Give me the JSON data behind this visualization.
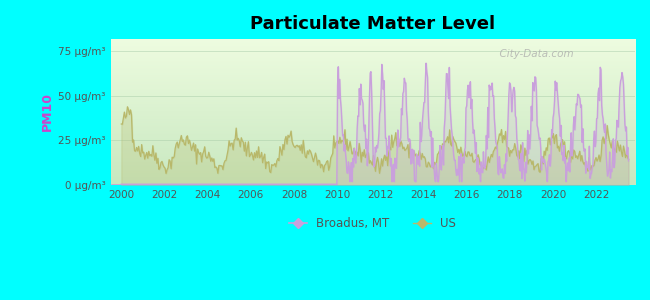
{
  "title": "Particulate Matter Level",
  "ylabel": "PM10",
  "background_color": "#00FFFF",
  "broadus_color": "#c9a0dc",
  "us_color": "#b8b86a",
  "watermark": "  City-Data.com",
  "yticks": [
    0,
    25,
    50,
    75
  ],
  "ytick_labels": [
    "0 μg/m³",
    "25 μg/m³",
    "50 μg/m³",
    "75 μg/m³"
  ],
  "ylim": [
    0,
    82
  ],
  "xlim": [
    1999.5,
    2023.8
  ],
  "xticks": [
    2000,
    2002,
    2004,
    2006,
    2008,
    2010,
    2012,
    2014,
    2016,
    2018,
    2020,
    2022
  ],
  "broadus_flat_end": 2010.0,
  "plot_bg_color_top": "#c8e8c0",
  "plot_bg_color_bottom": "#eefce0"
}
